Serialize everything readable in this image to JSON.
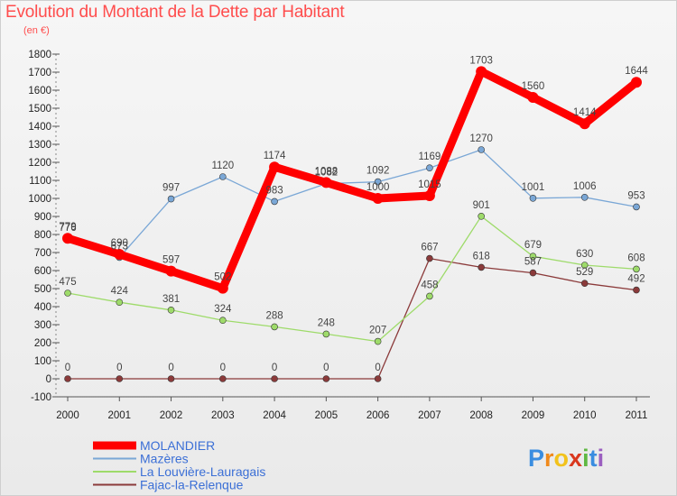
{
  "title": "Evolution du Montant de la Dette par Habitant",
  "subtitle": "(en €)",
  "logo": "Proxiti",
  "chart_data": {
    "type": "line",
    "title": "Evolution du Montant de la Dette par Habitant",
    "ylabel": "(en €)",
    "xlabel": "",
    "x": [
      2000,
      2001,
      2002,
      2003,
      2004,
      2005,
      2006,
      2007,
      2008,
      2009,
      2010,
      2011
    ],
    "ylim": [
      -100,
      1800
    ],
    "ytick_step": 100,
    "grid": false,
    "legend_position": "bottom-left",
    "series": [
      {
        "name": "MOLANDIER",
        "color": "#ff0000",
        "values": [
          779,
          690,
          597,
          502,
          1174,
          1088,
          1000,
          1015,
          1703,
          1560,
          1414,
          1644
        ]
      },
      {
        "name": "Mazères",
        "color": "#7aa7d6",
        "values": [
          776,
          673,
          997,
          1120,
          983,
          1082,
          1092,
          1169,
          1270,
          1001,
          1006,
          953
        ]
      },
      {
        "name": "La Louvière-Lauragais",
        "color": "#9edb6a",
        "values": [
          475,
          424,
          381,
          324,
          288,
          248,
          207,
          458,
          901,
          679,
          630,
          608
        ]
      },
      {
        "name": "Fajac-la-Relenque",
        "color": "#8b3a3a",
        "values": [
          0,
          0,
          0,
          0,
          0,
          0,
          0,
          667,
          618,
          587,
          529,
          492
        ]
      }
    ]
  }
}
